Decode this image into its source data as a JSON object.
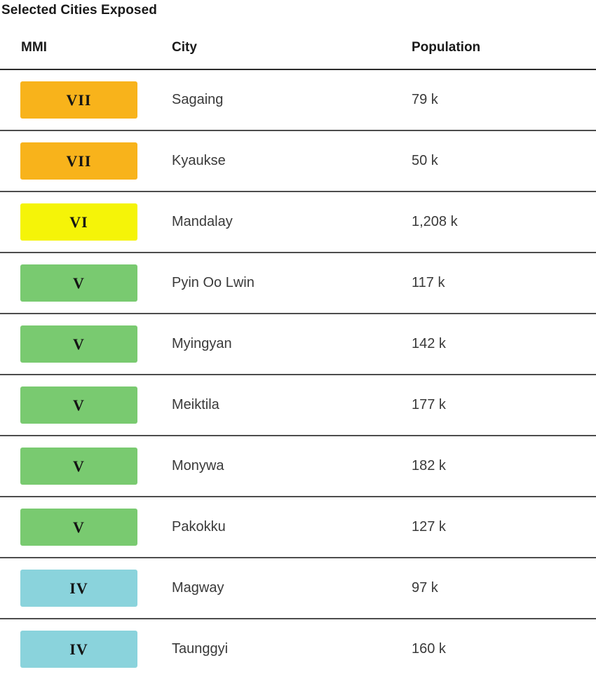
{
  "page": {
    "title": "Selected Cities Exposed"
  },
  "table": {
    "columns": [
      "MMI",
      "City",
      "Population"
    ],
    "rows": [
      {
        "mmi": "VII",
        "city": "Sagaing",
        "population": "79 k"
      },
      {
        "mmi": "VII",
        "city": "Kyaukse",
        "population": "50 k"
      },
      {
        "mmi": "VI",
        "city": "Mandalay",
        "population": "1,208 k"
      },
      {
        "mmi": "V",
        "city": "Pyin Oo Lwin",
        "population": "117 k"
      },
      {
        "mmi": "V",
        "city": "Myingyan",
        "population": "142 k"
      },
      {
        "mmi": "V",
        "city": "Meiktila",
        "population": "177 k"
      },
      {
        "mmi": "V",
        "city": "Monywa",
        "population": "182 k"
      },
      {
        "mmi": "V",
        "city": "Pakokku",
        "population": "127 k"
      },
      {
        "mmi": "IV",
        "city": "Magway",
        "population": "97 k"
      },
      {
        "mmi": "IV",
        "city": "Taunggyi",
        "population": "160 k"
      }
    ],
    "mmi_colors": {
      "VII": "#F8B31B",
      "VI": "#F5F408",
      "V": "#79CA70",
      "IV": "#8AD3DC"
    }
  }
}
